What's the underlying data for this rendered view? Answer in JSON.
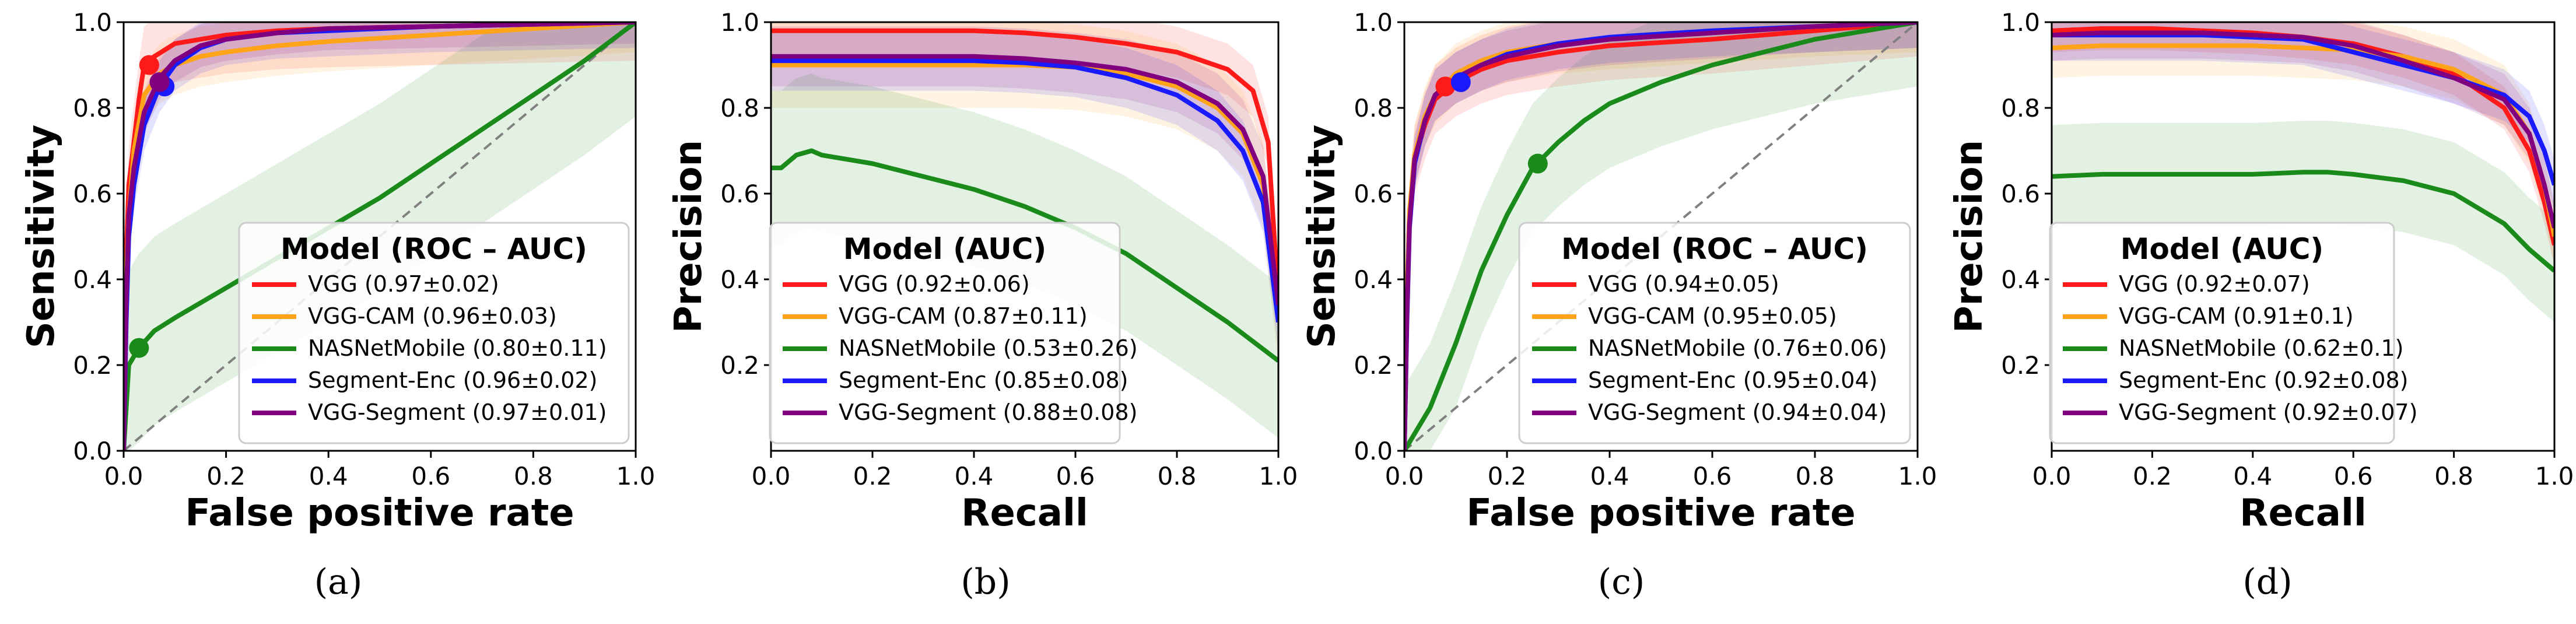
{
  "colors": {
    "VGG": "#ff1a1a",
    "VGG-CAM": "#ffa319",
    "NASNetMobile": "#1a8a1a",
    "Segment-Enc": "#1a1aff",
    "VGG-Segment": "#800080",
    "diagonal": "#808080"
  },
  "chart_data": [
    {
      "type": "line",
      "kind": "roc",
      "caption": "(a)",
      "xlabel": "False positive rate",
      "ylabel": "Sensitivity",
      "xlim": [
        0.0,
        1.0
      ],
      "ylim": [
        0.0,
        1.0
      ],
      "xticks": [
        "0.0",
        "0.2",
        "0.4",
        "0.6",
        "0.8",
        "1.0"
      ],
      "yticks": [
        "0.0",
        "0.2",
        "0.4",
        "0.6",
        "0.8",
        "1.0"
      ],
      "diagonal": true,
      "legend": {
        "title": "Model (ROC – AUC)",
        "position": "lower-right"
      },
      "series": [
        {
          "name": "VGG",
          "label": "VGG (0.97±0.02)",
          "band": 0.09,
          "x": [
            0,
            0.005,
            0.01,
            0.02,
            0.03,
            0.04,
            0.06,
            0.1,
            0.15,
            0.2,
            0.3,
            0.4,
            0.6,
            0.8,
            1.0
          ],
          "y": [
            0,
            0.45,
            0.62,
            0.72,
            0.82,
            0.9,
            0.92,
            0.95,
            0.96,
            0.97,
            0.98,
            0.985,
            0.99,
            0.995,
            1.0
          ],
          "marker": [
            0.05,
            0.9
          ]
        },
        {
          "name": "VGG-CAM",
          "label": "VGG-CAM (0.96±0.03)",
          "band": 0.07,
          "x": [
            0,
            0.005,
            0.01,
            0.02,
            0.04,
            0.07,
            0.1,
            0.15,
            0.2,
            0.3,
            0.4,
            0.6,
            0.8,
            1.0
          ],
          "y": [
            0,
            0.4,
            0.55,
            0.7,
            0.83,
            0.88,
            0.9,
            0.92,
            0.93,
            0.945,
            0.955,
            0.97,
            0.985,
            1.0
          ]
        },
        {
          "name": "NASNetMobile",
          "label": "NASNetMobile (0.80±0.11)",
          "band": 0.22,
          "x": [
            0,
            0.01,
            0.03,
            0.06,
            0.1,
            0.2,
            0.3,
            0.4,
            0.5,
            0.6,
            0.7,
            0.8,
            0.9,
            1.0
          ],
          "y": [
            0,
            0.2,
            0.24,
            0.28,
            0.31,
            0.38,
            0.45,
            0.52,
            0.59,
            0.67,
            0.75,
            0.83,
            0.91,
            1.0
          ],
          "marker": [
            0.03,
            0.24
          ]
        },
        {
          "name": "Segment-Enc",
          "label": "Segment-Enc (0.96±0.02)",
          "band": 0.06,
          "x": [
            0,
            0.005,
            0.01,
            0.02,
            0.04,
            0.07,
            0.1,
            0.15,
            0.2,
            0.3,
            0.4,
            0.6,
            0.8,
            1.0
          ],
          "y": [
            0,
            0.3,
            0.5,
            0.62,
            0.76,
            0.85,
            0.9,
            0.94,
            0.96,
            0.975,
            0.98,
            0.99,
            0.995,
            1.0
          ],
          "marker": [
            0.08,
            0.85
          ]
        },
        {
          "name": "VGG-Segment",
          "label": "VGG-Segment (0.97±0.01)",
          "band": 0.05,
          "x": [
            0,
            0.005,
            0.01,
            0.02,
            0.04,
            0.07,
            0.1,
            0.15,
            0.2,
            0.3,
            0.4,
            0.6,
            0.8,
            1.0
          ],
          "y": [
            0,
            0.35,
            0.55,
            0.66,
            0.79,
            0.87,
            0.91,
            0.945,
            0.96,
            0.975,
            0.985,
            0.99,
            0.995,
            1.0
          ],
          "marker": [
            0.07,
            0.86
          ]
        }
      ]
    },
    {
      "type": "line",
      "kind": "pr",
      "caption": "(b)",
      "xlabel": "Recall",
      "ylabel": "Precision",
      "xlim": [
        0.0,
        1.0
      ],
      "ylim": [
        0.0,
        1.0
      ],
      "xticks": [
        "0.0",
        "0.2",
        "0.4",
        "0.6",
        "0.8",
        "1.0"
      ],
      "yticks": [
        "0.2",
        "0.4",
        "0.6",
        "0.8",
        "1.0"
      ],
      "diagonal": false,
      "legend": {
        "title": "Model (AUC)",
        "position": "lower-center"
      },
      "series": [
        {
          "name": "VGG",
          "label": "VGG (0.92±0.06)",
          "band": 0.06,
          "x": [
            0,
            0.1,
            0.2,
            0.3,
            0.4,
            0.5,
            0.6,
            0.7,
            0.8,
            0.9,
            0.95,
            0.98,
            1.0
          ],
          "y": [
            0.98,
            0.98,
            0.98,
            0.98,
            0.98,
            0.975,
            0.965,
            0.95,
            0.93,
            0.89,
            0.84,
            0.72,
            0.35
          ]
        },
        {
          "name": "VGG-CAM",
          "label": "VGG-CAM (0.87±0.11)",
          "band": 0.1,
          "x": [
            0,
            0.1,
            0.2,
            0.3,
            0.4,
            0.5,
            0.6,
            0.7,
            0.8,
            0.88,
            0.93,
            0.97,
            1.0
          ],
          "y": [
            0.9,
            0.9,
            0.9,
            0.9,
            0.9,
            0.9,
            0.895,
            0.88,
            0.85,
            0.8,
            0.74,
            0.62,
            0.3
          ]
        },
        {
          "name": "NASNetMobile",
          "label": "NASNetMobile (0.53±0.26)",
          "band": 0.18,
          "x": [
            0,
            0.02,
            0.05,
            0.08,
            0.1,
            0.2,
            0.3,
            0.4,
            0.5,
            0.6,
            0.7,
            0.8,
            0.9,
            1.0
          ],
          "y": [
            0.66,
            0.66,
            0.69,
            0.7,
            0.69,
            0.67,
            0.64,
            0.61,
            0.57,
            0.52,
            0.46,
            0.38,
            0.3,
            0.21
          ]
        },
        {
          "name": "Segment-Enc",
          "label": "Segment-Enc (0.85±0.08)",
          "band": 0.07,
          "x": [
            0,
            0.1,
            0.2,
            0.3,
            0.4,
            0.5,
            0.6,
            0.7,
            0.8,
            0.88,
            0.93,
            0.97,
            1.0
          ],
          "y": [
            0.91,
            0.91,
            0.91,
            0.91,
            0.91,
            0.905,
            0.895,
            0.87,
            0.83,
            0.77,
            0.7,
            0.58,
            0.3
          ]
        },
        {
          "name": "VGG-Segment",
          "label": "VGG-Segment (0.88±0.08)",
          "band": 0.07,
          "x": [
            0,
            0.1,
            0.2,
            0.3,
            0.4,
            0.5,
            0.6,
            0.7,
            0.8,
            0.88,
            0.93,
            0.97,
            1.0
          ],
          "y": [
            0.92,
            0.92,
            0.92,
            0.92,
            0.92,
            0.915,
            0.905,
            0.89,
            0.86,
            0.81,
            0.75,
            0.64,
            0.34
          ]
        }
      ]
    },
    {
      "type": "line",
      "kind": "roc",
      "caption": "(c)",
      "xlabel": "False positive rate",
      "ylabel": "Sensitivity",
      "xlim": [
        0.0,
        1.0
      ],
      "ylim": [
        0.0,
        1.0
      ],
      "xticks": [
        "0.0",
        "0.2",
        "0.4",
        "0.6",
        "0.8",
        "1.0"
      ],
      "yticks": [
        "0.0",
        "0.2",
        "0.4",
        "0.6",
        "0.8",
        "1.0"
      ],
      "diagonal": true,
      "legend": {
        "title": "Model (ROC – AUC)",
        "position": "lower-right"
      },
      "series": [
        {
          "name": "VGG",
          "label": "VGG (0.94±0.05)",
          "band": 0.08,
          "x": [
            0,
            0.005,
            0.01,
            0.02,
            0.04,
            0.06,
            0.1,
            0.15,
            0.2,
            0.3,
            0.4,
            0.6,
            0.8,
            1.0
          ],
          "y": [
            0,
            0.35,
            0.55,
            0.68,
            0.76,
            0.82,
            0.86,
            0.89,
            0.91,
            0.93,
            0.945,
            0.96,
            0.98,
            1.0
          ],
          "marker": [
            0.08,
            0.85
          ]
        },
        {
          "name": "VGG-CAM",
          "label": "VGG-CAM (0.95±0.05)",
          "band": 0.07,
          "x": [
            0,
            0.005,
            0.01,
            0.02,
            0.04,
            0.06,
            0.1,
            0.15,
            0.2,
            0.3,
            0.4,
            0.6,
            0.8,
            1.0
          ],
          "y": [
            0,
            0.35,
            0.56,
            0.69,
            0.78,
            0.83,
            0.88,
            0.91,
            0.93,
            0.95,
            0.96,
            0.975,
            0.99,
            1.0
          ]
        },
        {
          "name": "NASNetMobile",
          "label": "NASNetMobile (0.76±0.06)",
          "band": 0.15,
          "x": [
            0,
            0.05,
            0.1,
            0.15,
            0.2,
            0.25,
            0.3,
            0.35,
            0.4,
            0.5,
            0.6,
            0.7,
            0.8,
            0.9,
            1.0
          ],
          "y": [
            0,
            0.1,
            0.25,
            0.42,
            0.55,
            0.66,
            0.72,
            0.77,
            0.81,
            0.86,
            0.9,
            0.93,
            0.96,
            0.98,
            1.0
          ],
          "marker": [
            0.26,
            0.67
          ]
        },
        {
          "name": "Segment-Enc",
          "label": "Segment-Enc (0.95±0.04)",
          "band": 0.06,
          "x": [
            0,
            0.005,
            0.01,
            0.02,
            0.04,
            0.06,
            0.1,
            0.15,
            0.2,
            0.3,
            0.4,
            0.6,
            0.8,
            1.0
          ],
          "y": [
            0,
            0.3,
            0.52,
            0.67,
            0.77,
            0.83,
            0.87,
            0.9,
            0.925,
            0.95,
            0.965,
            0.98,
            0.99,
            1.0
          ],
          "marker": [
            0.11,
            0.86
          ]
        },
        {
          "name": "VGG-Segment",
          "label": "VGG-Segment (0.94±0.04)",
          "band": 0.06,
          "x": [
            0,
            0.005,
            0.01,
            0.02,
            0.04,
            0.06,
            0.1,
            0.15,
            0.2,
            0.3,
            0.4,
            0.6,
            0.8,
            1.0
          ],
          "y": [
            0,
            0.32,
            0.53,
            0.68,
            0.77,
            0.83,
            0.87,
            0.9,
            0.92,
            0.945,
            0.96,
            0.975,
            0.99,
            1.0
          ]
        }
      ]
    },
    {
      "type": "line",
      "kind": "pr",
      "caption": "(d)",
      "xlabel": "Recall",
      "ylabel": "Precision",
      "xlim": [
        0.0,
        1.0
      ],
      "ylim": [
        0.0,
        1.0
      ],
      "xticks": [
        "0.0",
        "0.2",
        "0.4",
        "0.6",
        "0.8",
        "1.0"
      ],
      "yticks": [
        "0.2",
        "0.4",
        "0.6",
        "0.8",
        "1.0"
      ],
      "diagonal": false,
      "legend": {
        "title": "Model (AUC)",
        "position": "lower-center"
      },
      "series": [
        {
          "name": "VGG",
          "label": "VGG (0.92±0.07)",
          "band": 0.05,
          "x": [
            0,
            0.1,
            0.2,
            0.3,
            0.4,
            0.5,
            0.6,
            0.7,
            0.8,
            0.9,
            0.95,
            0.98,
            1.0
          ],
          "y": [
            0.98,
            0.985,
            0.985,
            0.98,
            0.975,
            0.965,
            0.95,
            0.92,
            0.88,
            0.8,
            0.7,
            0.58,
            0.48
          ]
        },
        {
          "name": "VGG-CAM",
          "label": "VGG-CAM (0.91±0.1)",
          "band": 0.07,
          "x": [
            0,
            0.1,
            0.2,
            0.3,
            0.4,
            0.5,
            0.6,
            0.7,
            0.8,
            0.9,
            0.95,
            0.98,
            1.0
          ],
          "y": [
            0.94,
            0.945,
            0.945,
            0.945,
            0.945,
            0.94,
            0.935,
            0.92,
            0.89,
            0.83,
            0.74,
            0.62,
            0.5
          ]
        },
        {
          "name": "NASNetMobile",
          "label": "NASNetMobile (0.62±0.1)",
          "band": 0.12,
          "x": [
            0,
            0.1,
            0.2,
            0.3,
            0.4,
            0.5,
            0.55,
            0.6,
            0.7,
            0.8,
            0.9,
            0.95,
            1.0
          ],
          "y": [
            0.64,
            0.645,
            0.645,
            0.645,
            0.645,
            0.65,
            0.65,
            0.645,
            0.63,
            0.6,
            0.53,
            0.47,
            0.42
          ]
        },
        {
          "name": "Segment-Enc",
          "label": "Segment-Enc (0.92±0.08)",
          "band": 0.06,
          "x": [
            0,
            0.1,
            0.2,
            0.3,
            0.4,
            0.5,
            0.6,
            0.7,
            0.8,
            0.9,
            0.95,
            0.98,
            1.0
          ],
          "y": [
            0.97,
            0.97,
            0.97,
            0.97,
            0.965,
            0.96,
            0.93,
            0.9,
            0.87,
            0.83,
            0.78,
            0.7,
            0.62
          ]
        },
        {
          "name": "VGG-Segment",
          "label": "VGG-Segment (0.92±0.07)",
          "band": 0.06,
          "x": [
            0,
            0.1,
            0.2,
            0.3,
            0.4,
            0.5,
            0.6,
            0.7,
            0.8,
            0.9,
            0.95,
            0.98,
            1.0
          ],
          "y": [
            0.97,
            0.975,
            0.975,
            0.975,
            0.97,
            0.965,
            0.945,
            0.91,
            0.87,
            0.82,
            0.74,
            0.62,
            0.52
          ]
        }
      ]
    }
  ]
}
